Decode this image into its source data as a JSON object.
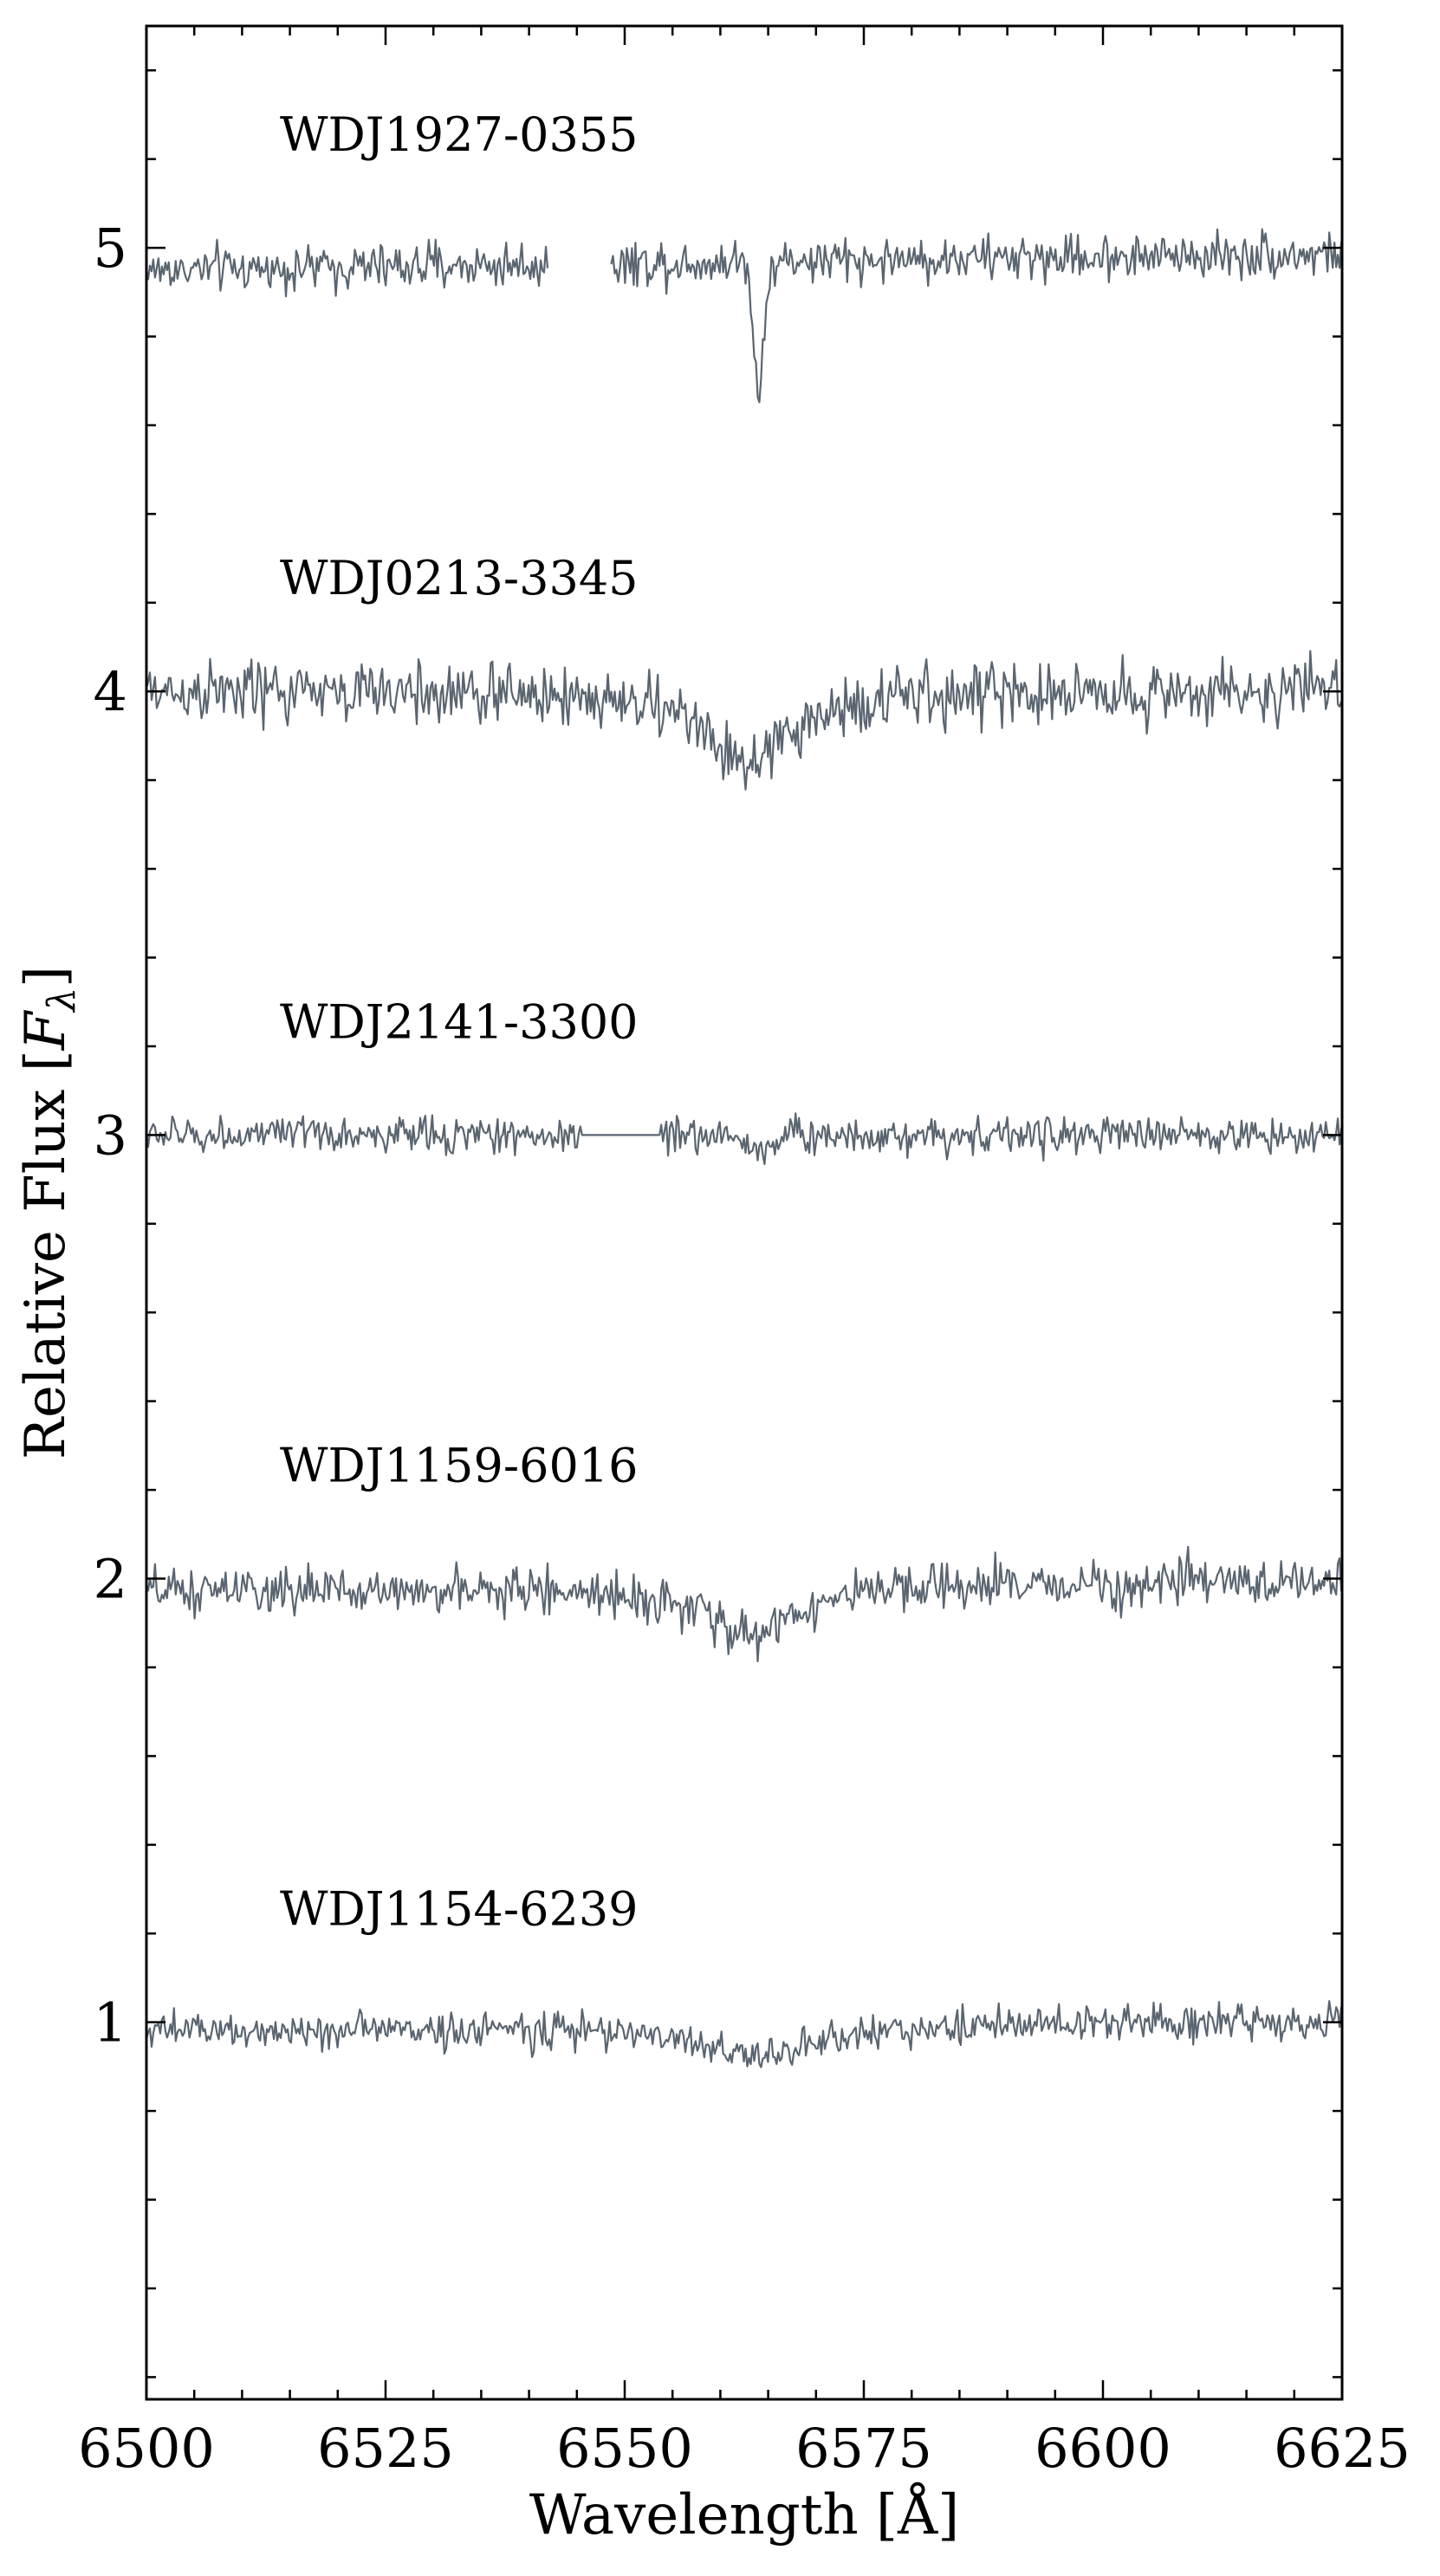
{
  "chart_data": {
    "type": "line",
    "xlabel": "Wavelength [Å]",
    "ylabel_text": "Relative Flux [",
    "ylabel_symbol": "F",
    "ylabel_subscript": "λ",
    "ylabel_close": "]",
    "xlim": [
      6500,
      6625
    ],
    "ylim": [
      0.15,
      5.5
    ],
    "x_ticks": [
      6500,
      6525,
      6550,
      6575,
      6600,
      6625
    ],
    "y_ticks": [
      1,
      2,
      3,
      4,
      5
    ],
    "x_minor_step": 5,
    "y_minor_step": 0.2,
    "grid": false,
    "tick_direction": "in",
    "line_color": "#5a6570",
    "series": [
      {
        "name": "WDJ1927-0355",
        "offset": 5,
        "continuum": 4.95,
        "noise": 0.025,
        "line_center": 6564,
        "line_depth": 0.3,
        "line_width": 0.5,
        "line_type": "narrow",
        "gaps": [
          [
            6542,
            6548.5
          ]
        ],
        "slope": 0.0003
      },
      {
        "name": "WDJ0213-3345",
        "offset": 4,
        "continuum": 4.0,
        "noise": 0.035,
        "line_center": 6563,
        "line_depth": 0.17,
        "line_width": 5,
        "line_type": "broad",
        "gaps": [],
        "slope": 0
      },
      {
        "name": "WDJ2141-3300",
        "offset": 3,
        "continuum": 3.0,
        "noise": 0.02,
        "line_center": 6564,
        "line_depth": 0.04,
        "line_width": 1,
        "line_type": "narrow",
        "gaps": [],
        "flat_segments": [
          [
            6545.5,
            6553.5
          ]
        ],
        "slope": 0
      },
      {
        "name": "WDJ1159-6016",
        "offset": 2,
        "continuum": 1.97,
        "noise": 0.025,
        "line_center": 6563,
        "line_depth": 0.11,
        "line_width": 5.5,
        "line_type": "broad",
        "gaps": [],
        "slope": 0.0002
      },
      {
        "name": "WDJ1154-6239",
        "offset": 1,
        "continuum": 0.98,
        "noise": 0.02,
        "line_center": 6564,
        "line_depth": 0.07,
        "line_width": 7,
        "line_type": "broad",
        "gaps": [],
        "slope": 0.0002
      }
    ]
  }
}
